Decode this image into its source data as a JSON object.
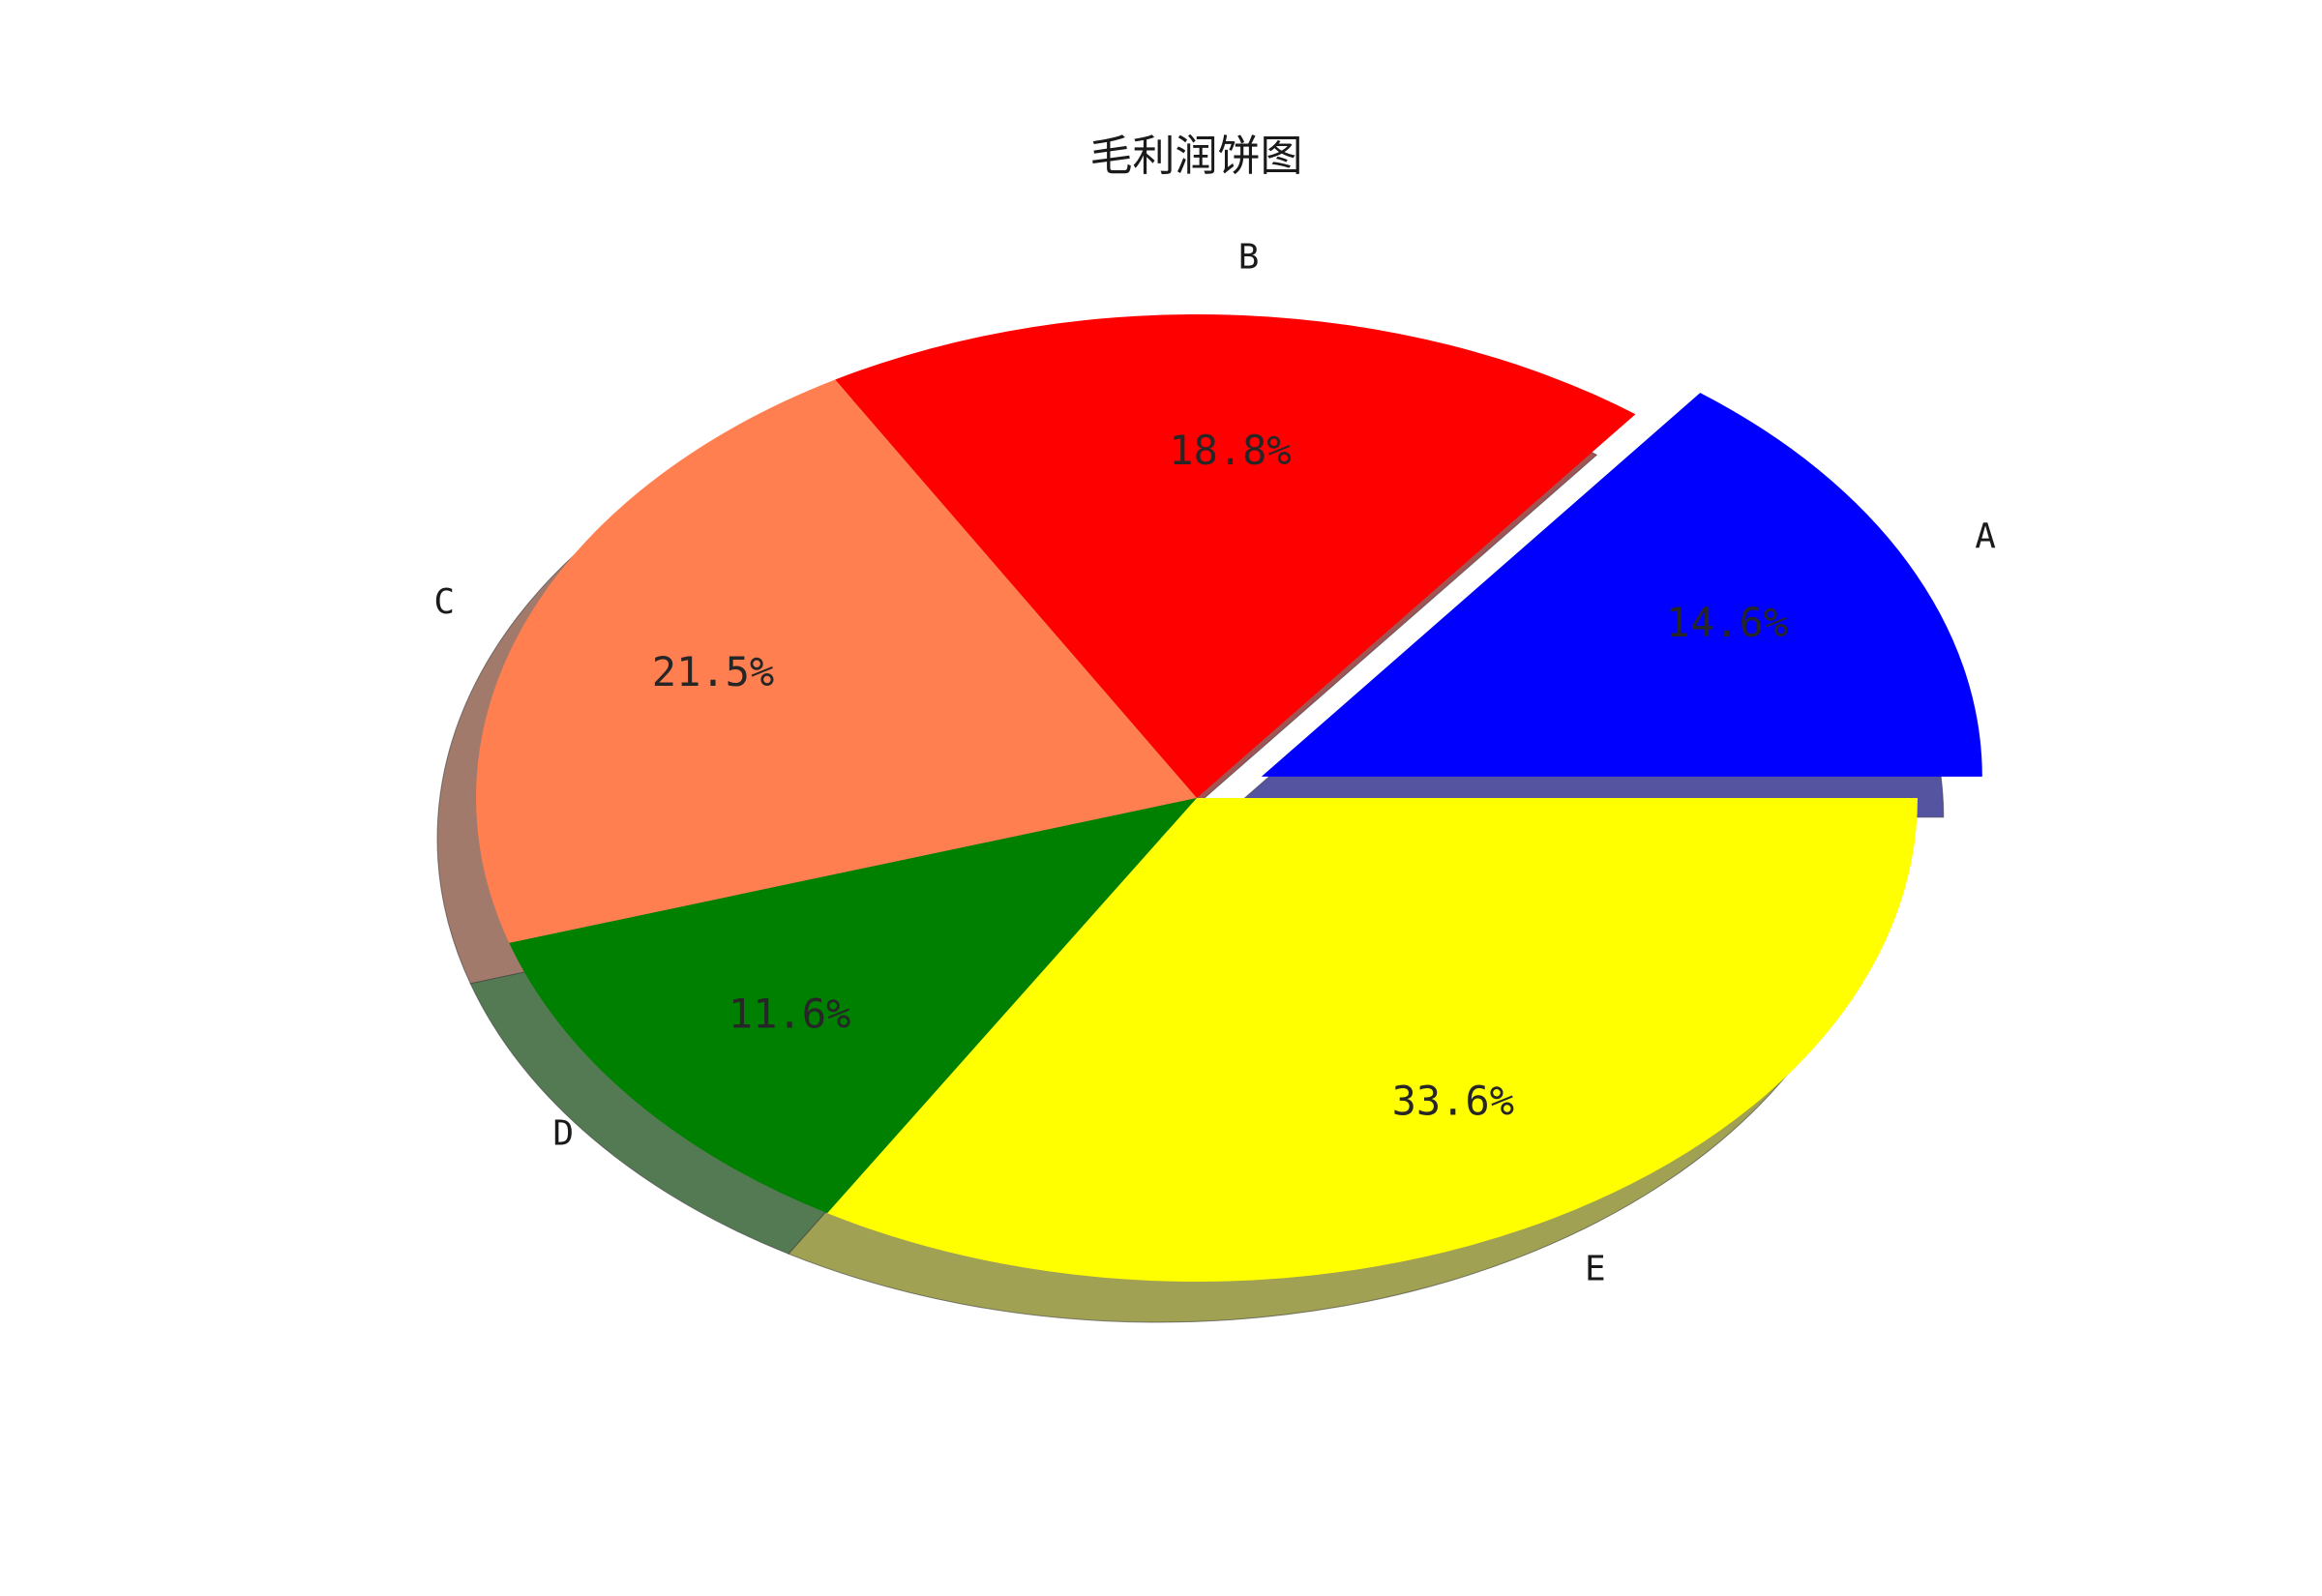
{
  "chart_data": {
    "type": "pie",
    "title": "毛利润饼图",
    "categories": [
      "A",
      "B",
      "C",
      "D",
      "E"
    ],
    "values": [
      14.6,
      18.8,
      21.5,
      11.6,
      33.6
    ],
    "percent_labels": [
      "14.6%",
      "18.8%",
      "21.5%",
      "11.6%",
      "33.6%"
    ],
    "colors": [
      "#0000ff",
      "#ff0000",
      "#ff7f50",
      "#008000",
      "#ffff00"
    ],
    "exploded": [
      "A"
    ],
    "shadow": true,
    "start_angle_deg": 0,
    "direction": "counterclockwise"
  }
}
